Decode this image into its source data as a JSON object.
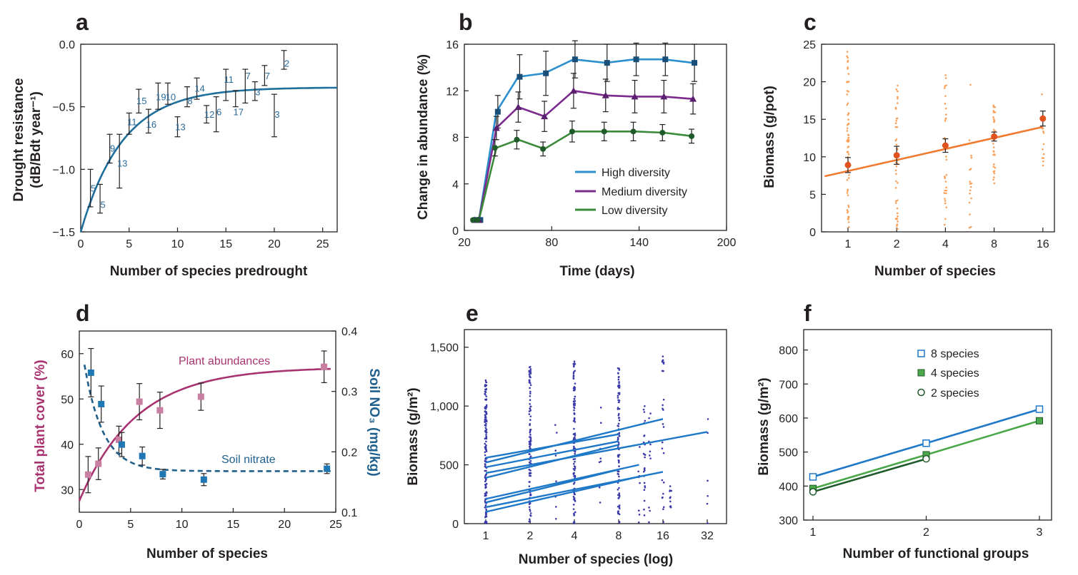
{
  "chart_data": [
    {
      "panel": "a",
      "type": "scatter",
      "xlabel": "Number of species predrought",
      "ylabel_line1": "Drought resistance",
      "ylabel_line2": "(dB/Bdt year⁻¹)",
      "xlim": [
        0,
        26.5
      ],
      "ylim": [
        -1.5,
        0
      ],
      "xticks": [
        0,
        5,
        10,
        15,
        20,
        25
      ],
      "yticks": [
        -1.5,
        -1.0,
        -0.5,
        0.0
      ],
      "ytick_labels": [
        "−1.5",
        "−1.0",
        "−0.5",
        "0.0"
      ],
      "points": [
        {
          "x": 1,
          "y": -1.15,
          "lo": -1.3,
          "hi": -1.0,
          "label": "5"
        },
        {
          "x": 2,
          "y": -1.28,
          "lo": -1.35,
          "hi": -1.12,
          "label": "5"
        },
        {
          "x": 3,
          "y": -0.83,
          "lo": -0.95,
          "hi": -0.72,
          "label": "9"
        },
        {
          "x": 4,
          "y": -0.95,
          "lo": -1.15,
          "hi": -0.72,
          "label": "13"
        },
        {
          "x": 5,
          "y": -0.62,
          "lo": -0.72,
          "hi": -0.55,
          "label": "11"
        },
        {
          "x": 6,
          "y": -0.45,
          "lo": -0.55,
          "hi": -0.36,
          "label": "15"
        },
        {
          "x": 7,
          "y": -0.64,
          "lo": -0.71,
          "hi": -0.52,
          "label": "16"
        },
        {
          "x": 8,
          "y": -0.42,
          "lo": -0.52,
          "hi": -0.31,
          "label": "19"
        },
        {
          "x": 9,
          "y": -0.42,
          "lo": -0.48,
          "hi": -0.31,
          "label": "10"
        },
        {
          "x": 10,
          "y": -0.66,
          "lo": -0.74,
          "hi": -0.58,
          "label": "13"
        },
        {
          "x": 11,
          "y": -0.45,
          "lo": -0.5,
          "hi": -0.34,
          "label": "8"
        },
        {
          "x": 12,
          "y": -0.35,
          "lo": -0.44,
          "hi": -0.27,
          "label": "14"
        },
        {
          "x": 13,
          "y": -0.56,
          "lo": -0.63,
          "hi": -0.49,
          "label": "12"
        },
        {
          "x": 14,
          "y": -0.54,
          "lo": -0.7,
          "hi": -0.42,
          "label": "6"
        },
        {
          "x": 15,
          "y": -0.28,
          "lo": -0.45,
          "hi": -0.2,
          "label": "11"
        },
        {
          "x": 16,
          "y": -0.54,
          "lo": -0.5,
          "hi": -0.37,
          "label": "17"
        },
        {
          "x": 17,
          "y": -0.25,
          "lo": -0.47,
          "hi": -0.2,
          "label": "7"
        },
        {
          "x": 18,
          "y": -0.38,
          "lo": -0.45,
          "hi": -0.3,
          "label": "3"
        },
        {
          "x": 19,
          "y": -0.25,
          "lo": -0.33,
          "hi": -0.17,
          "label": "7"
        },
        {
          "x": 20,
          "y": -0.56,
          "lo": -0.74,
          "hi": -0.4,
          "label": "3"
        },
        {
          "x": 21,
          "y": -0.15,
          "lo": -0.2,
          "hi": -0.05,
          "label": "2"
        }
      ],
      "fit": {
        "asymptote": -0.345,
        "start": -1.5,
        "rate": 0.23
      },
      "colors": {
        "points": "#2a6a9a",
        "curve": "#1f6f9c"
      }
    },
    {
      "panel": "b",
      "type": "line",
      "xlabel": "Time (days)",
      "ylabel": "Change in abundance (%)",
      "xlim": [
        20,
        200
      ],
      "ylim": [
        0,
        16
      ],
      "xticks": [
        20,
        80,
        140,
        200
      ],
      "yticks": [
        0,
        4,
        8,
        12,
        16
      ],
      "x": [
        27,
        30,
        42,
        57,
        75,
        95,
        117,
        137,
        157,
        177
      ],
      "series": [
        {
          "name": "High diversity",
          "color": "#2b8fcd",
          "marker": "square",
          "values": [
            0.9,
            0.9,
            10.2,
            13.2,
            13.5,
            14.7,
            14.4,
            14.7,
            14.7,
            14.4
          ],
          "errs": [
            0.1,
            0.1,
            1.4,
            1.9,
            1.9,
            1.6,
            1.6,
            1.4,
            1.4,
            1.6
          ]
        },
        {
          "name": "Medium diversity",
          "color": "#7b2a8e",
          "marker": "triangle",
          "values": [
            0.9,
            0.9,
            8.8,
            10.6,
            9.8,
            12.0,
            11.6,
            11.5,
            11.5,
            11.3
          ],
          "errs": [
            0.1,
            0.1,
            1.0,
            1.3,
            1.3,
            1.5,
            1.4,
            1.4,
            1.4,
            1.3
          ]
        },
        {
          "name": "Low diversity",
          "color": "#3a8a3a",
          "marker": "circle",
          "values": [
            0.9,
            0.9,
            7.1,
            7.8,
            7.0,
            8.5,
            8.5,
            8.5,
            8.4,
            8.1
          ],
          "errs": [
            0.1,
            0.1,
            0.7,
            0.8,
            0.6,
            0.9,
            0.8,
            0.8,
            0.7,
            0.6
          ]
        }
      ],
      "legend_position": "bottom-right"
    },
    {
      "panel": "c",
      "type": "scatter",
      "xlabel": "Number of species",
      "ylabel": "Biomass (g/pot)",
      "categories": [
        "1",
        "2",
        "4",
        "8",
        "16"
      ],
      "ylim": [
        0,
        25
      ],
      "yticks": [
        0,
        5,
        10,
        15,
        20,
        25
      ],
      "means": [
        8.9,
        10.2,
        11.5,
        12.7,
        15.1
      ],
      "errs": [
        1.0,
        1.2,
        0.9,
        0.6,
        1.0
      ],
      "raw_ranges": [
        [
          0.2,
          24.8
        ],
        [
          0.3,
          19.5
        ],
        [
          0.5,
          21.5
        ],
        [
          6.4,
          17.5
        ],
        [
          8.3,
          18.5
        ]
      ],
      "fit": {
        "intercept": 7.4,
        "slope_per_log2": 1.47
      },
      "colors": {
        "points": "#f7a15c",
        "line": "#f07a30",
        "means": "#e0531e"
      }
    },
    {
      "panel": "d",
      "type": "scatter",
      "xlabel": "Number of species",
      "ylabel_left": "Total plant cover (%)",
      "ylabel_right": "Soil NO₃ (mg/kg)",
      "xlim": [
        0,
        25
      ],
      "ylim_left": [
        25,
        65
      ],
      "ylim_right": [
        0.1,
        0.4
      ],
      "xticks": [
        0,
        5,
        10,
        15,
        20,
        25
      ],
      "yticks_left": [
        30,
        40,
        50,
        60
      ],
      "yticks_right": [
        0.1,
        0.2,
        0.3,
        0.4
      ],
      "series": [
        {
          "name": "Plant abundances",
          "axis": "left",
          "color": "#a8336f",
          "marker_color": "#c97fa2",
          "x": [
            1,
            2,
            4,
            6,
            8,
            12,
            24
          ],
          "values": [
            33.3,
            35.7,
            41.0,
            49.4,
            47.5,
            50.5,
            57.1
          ],
          "errs": [
            4.0,
            3.5,
            3.0,
            4.0,
            4.0,
            3.0,
            3.5
          ],
          "fit": {
            "asymptote": 57,
            "start": 27.5,
            "rate": 0.18
          }
        },
        {
          "name": "Soil nitrate",
          "axis": "right",
          "color": "#1f5f8b",
          "marker_color": "#1f78b4",
          "x": [
            1,
            2,
            4,
            6,
            8,
            12,
            24
          ],
          "values": [
            0.331,
            0.279,
            0.212,
            0.193,
            0.163,
            0.154,
            0.172
          ],
          "errs": [
            0.04,
            0.03,
            0.02,
            0.015,
            0.008,
            0.01,
            0.008
          ],
          "fit": {
            "asymptote": 0.168,
            "start": 0.4,
            "rate": 0.55
          }
        }
      ]
    },
    {
      "panel": "e",
      "type": "scatter",
      "xlabel": "Number of species (log)",
      "ylabel": "Biomass (g/m²)",
      "categories": [
        "1",
        "2",
        "4",
        "8",
        "16",
        "32"
      ],
      "ylim": [
        0,
        1650
      ],
      "yticks": [
        0,
        500,
        1000,
        1500
      ],
      "ytick_labels": [
        "0",
        "500",
        "1,000",
        "1,500"
      ],
      "lines": [
        {
          "start": 560,
          "end": 760,
          "xend": 8
        },
        {
          "start": 520,
          "end": 890,
          "xend": 16
        },
        {
          "start": 480,
          "end": 700,
          "xend": 8
        },
        {
          "start": 430,
          "end": 780,
          "xend": 32
        },
        {
          "start": 390,
          "end": 670,
          "xend": 8
        },
        {
          "start": 210,
          "end": 500,
          "xend": 11
        },
        {
          "start": 180,
          "end": 460,
          "xend": 8
        },
        {
          "start": 140,
          "end": 440,
          "xend": 16
        },
        {
          "start": 100,
          "end": 400,
          "xend": 11
        }
      ],
      "colors": {
        "points": "#3a3aa8",
        "lines": "#1e78c8"
      }
    },
    {
      "panel": "f",
      "type": "line",
      "xlabel": "Number of functional groups",
      "ylabel": "Biomass (g/m²)",
      "xlim": [
        1,
        3
      ],
      "ylim": [
        300,
        860
      ],
      "xticks": [
        1,
        2,
        3
      ],
      "yticks": [
        300,
        400,
        500,
        600,
        700,
        800
      ],
      "series": [
        {
          "name": "8 species",
          "x": [
            1,
            2,
            3
          ],
          "values": [
            427,
            526,
            626
          ],
          "color": "#1e78c8",
          "marker": "open-square"
        },
        {
          "name": "4 species",
          "x": [
            1,
            2,
            3
          ],
          "values": [
            393,
            492,
            592
          ],
          "color": "#4aa84a",
          "marker": "filled-square"
        },
        {
          "name": "2 species",
          "x": [
            1,
            2
          ],
          "values": [
            383,
            480
          ],
          "color": "#1f5a2a",
          "marker": "open-circle"
        }
      ],
      "legend_position": "top-right"
    }
  ],
  "labels": {
    "a": {
      "panel_letter": "a"
    },
    "b": {
      "panel_letter": "b",
      "legend": [
        "High diversity",
        "Medium diversity",
        "Low diversity"
      ]
    },
    "c": {
      "panel_letter": "c"
    },
    "d": {
      "panel_letter": "d",
      "curve_label_1": "Plant abundances",
      "curve_label_2": "Soil nitrate"
    },
    "e": {
      "panel_letter": "e"
    },
    "f": {
      "panel_letter": "f",
      "legend": [
        "8 species",
        "4 species",
        "2 species"
      ]
    }
  }
}
